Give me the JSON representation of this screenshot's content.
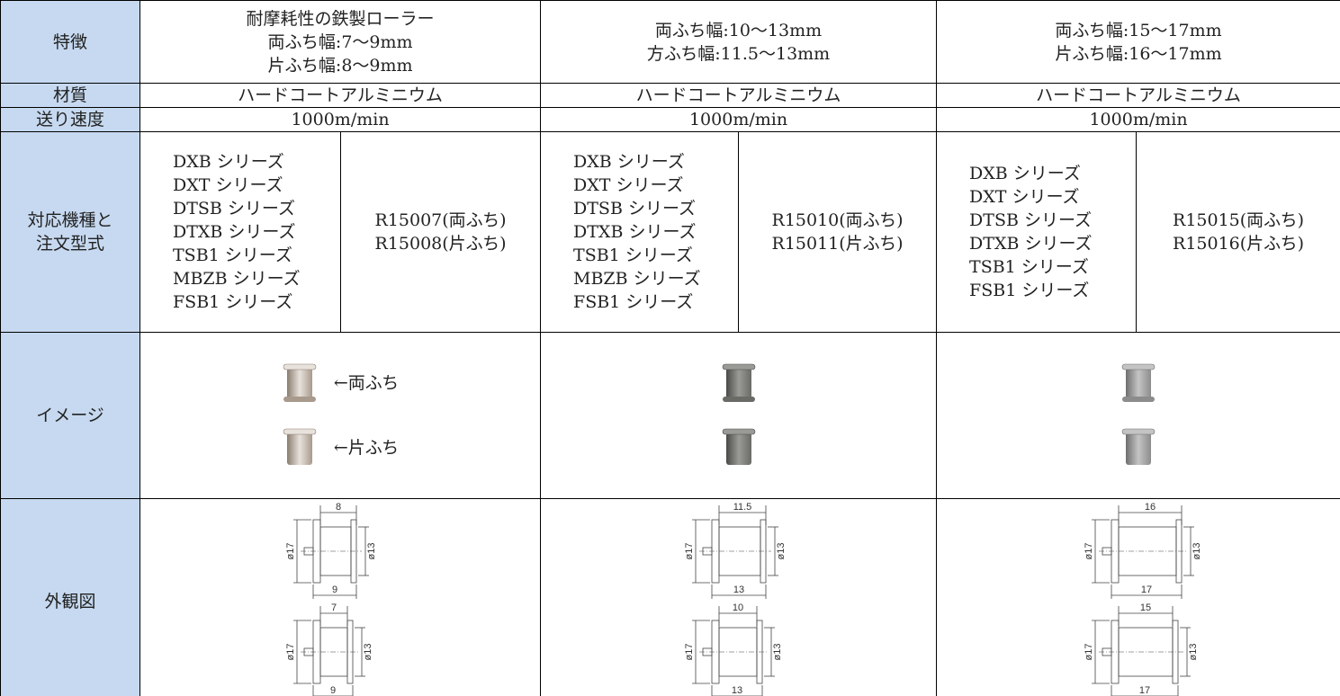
{
  "table": {
    "row_headers": [
      [
        "特徴"
      ],
      [
        "材質"
      ],
      [
        "送り速度"
      ],
      [
        "対応機種と",
        "注文型式"
      ],
      [
        "イメージ"
      ],
      [
        "外観図"
      ]
    ],
    "columns": [
      {
        "features": [
          "耐摩耗性の鉄製ローラー",
          "両ふち幅:7～9mm",
          "片ふち幅:8～9mm"
        ],
        "material": "ハードコートアルミニウム",
        "speed": "1000m/min",
        "models": [
          "DXB シリーズ",
          "DXT シリーズ",
          "DTSB シリーズ",
          "DTXB シリーズ",
          "TSB1 シリーズ",
          "MBZB シリーズ",
          "FSB1 シリーズ"
        ],
        "order_codes": [
          "R15007(両ふち)",
          "R15008(片ふち)"
        ],
        "image_labels": [
          "←両ふち",
          "←片ふち"
        ],
        "drawings": [
          {
            "top": "8",
            "bottom": "9",
            "outer": "ø17",
            "inner": "ø13"
          },
          {
            "top": "7",
            "bottom": "9",
            "outer": "ø17",
            "inner": "ø13"
          }
        ]
      },
      {
        "features": [
          "両ふち幅:10～13mm",
          "方ふち幅:11.5～13mm"
        ],
        "material": "ハードコートアルミニウム",
        "speed": "1000m/min",
        "models": [
          "DXB シリーズ",
          "DXT シリーズ",
          "DTSB シリーズ",
          "DTXB シリーズ",
          "TSB1 シリーズ",
          "MBZB シリーズ",
          "FSB1 シリーズ"
        ],
        "order_codes": [
          "R15010(両ふち)",
          "R15011(片ふち)"
        ],
        "drawings": [
          {
            "top": "11.5",
            "bottom": "13",
            "outer": "ø17",
            "inner": "ø13"
          },
          {
            "top": "10",
            "bottom": "13",
            "outer": "ø17",
            "inner": "ø13"
          }
        ]
      },
      {
        "features": [
          "両ふち幅:15～17mm",
          "片ふち幅:16～17mm"
        ],
        "material": "ハードコートアルミニウム",
        "speed": "1000m/min",
        "models": [
          "DXB シリーズ",
          "DXT シリーズ",
          "DTSB シリーズ",
          "DTXB シリーズ",
          "TSB1 シリーズ",
          "FSB1 シリーズ"
        ],
        "order_codes": [
          "R15015(両ふち)",
          "R15016(片ふち)"
        ],
        "drawings": [
          {
            "top": "16",
            "bottom": "17",
            "outer": "ø17",
            "inner": "ø13"
          },
          {
            "top": "15",
            "bottom": "17",
            "outer": "ø17",
            "inner": "ø13"
          }
        ]
      }
    ]
  }
}
